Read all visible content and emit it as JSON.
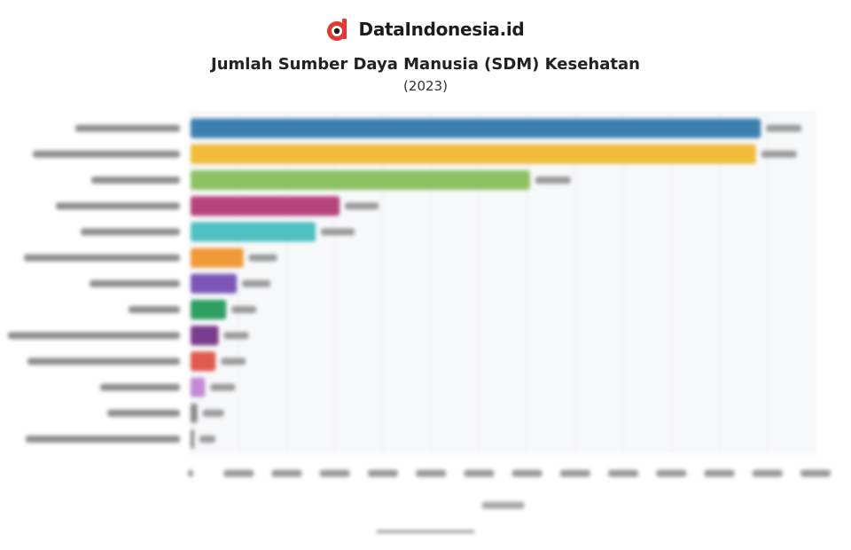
{
  "brand": {
    "name": "DataIndonesia.id",
    "logo_icon": "dataindonesia-logo-icon"
  },
  "chart_data": {
    "type": "bar",
    "orientation": "horizontal",
    "title": "Jumlah Sumber Daya Manusia (SDM) Kesehatan",
    "subtitle": "(2023)",
    "categories": [
      "",
      "",
      "",
      "",
      "",
      "",
      "",
      "",
      "",
      "",
      "",
      "",
      ""
    ],
    "values": [
      593000,
      588000,
      353000,
      155000,
      130000,
      55000,
      48000,
      37000,
      29000,
      26000,
      15000,
      7000,
      3000
    ],
    "colors": [
      "#3b7fb0",
      "#f0bc3a",
      "#8cc263",
      "#b5437c",
      "#4fc0c4",
      "#f09a3a",
      "#7b56b8",
      "#2f9e63",
      "#7a3c8c",
      "#e05a4f",
      "#c48ad6",
      "#8a8a8a",
      "#8a8a8a"
    ],
    "xlim": [
      0,
      650000
    ],
    "grid": true,
    "legend": "none"
  }
}
